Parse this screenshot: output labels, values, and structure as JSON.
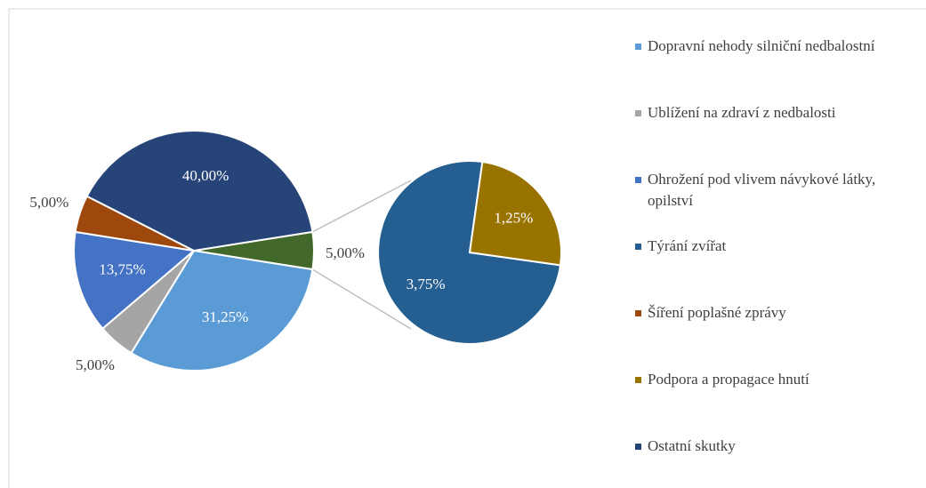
{
  "chart_data": {
    "type": "pie-of-pie",
    "categories": [
      "Dopravní nehody silniční nedbalostní",
      "Ublížení na zdraví z nedbalosti",
      "Ohrožení pod vlivem návykové látky, opilství",
      "Týrání zvířat",
      "Šíření poplašné zprávy",
      "Podpora a propagace hnutí",
      "Ostatní skutky"
    ],
    "values": [
      31.25,
      5,
      13.75,
      3.75,
      5,
      1.25,
      40
    ],
    "value_labels": [
      "31,25%",
      "5,00%",
      "13,75%",
      "3,75%",
      "5,00%",
      "1,25%",
      "40,00%"
    ],
    "colors": [
      "#5b9bd5",
      "#a5a5a5",
      "#4472c4",
      "#255e91",
      "#9e480e",
      "#997300",
      "#264478"
    ],
    "in_secondary": [
      false,
      false,
      false,
      true,
      false,
      true,
      false
    ],
    "other_value": 5,
    "other_label": "5,00%",
    "other_color": "#43682b",
    "legend": "right"
  }
}
